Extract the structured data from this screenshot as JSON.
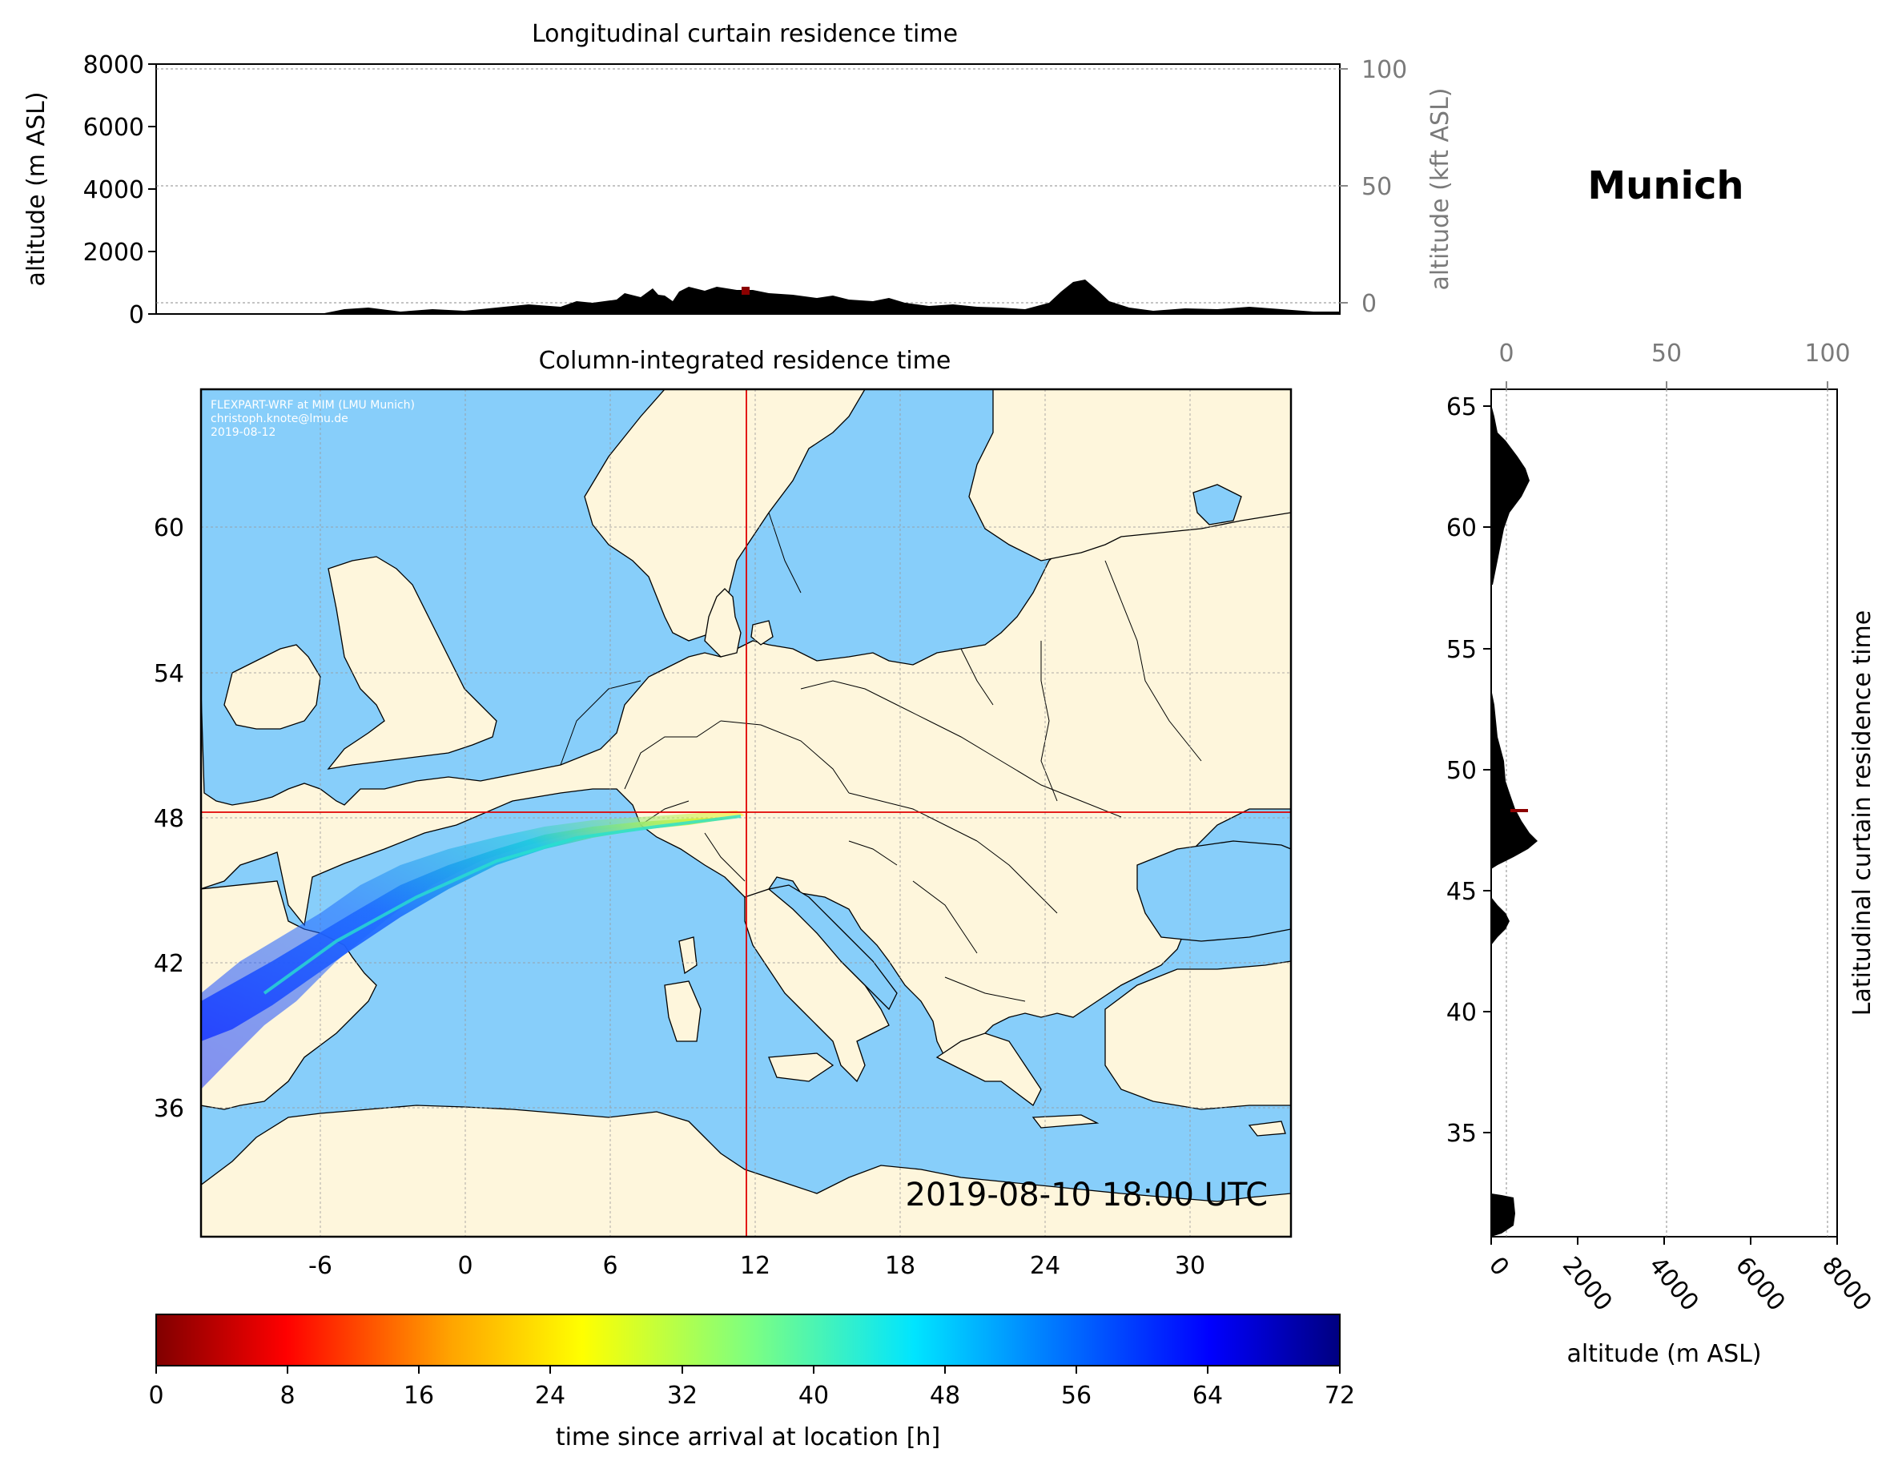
{
  "location_title": "Munich",
  "top_panel": {
    "title": "Longitudinal curtain residence time",
    "ylabel_left": "altitude (m ASL)",
    "ylabel_right": "altitude (kft ASL)",
    "left_ticks": [
      "0",
      "2000",
      "4000",
      "6000",
      "8000"
    ],
    "right_ticks": [
      "0",
      "50",
      "100"
    ]
  },
  "map_panel": {
    "title": "Column-integrated residence time",
    "credit": [
      "FLEXPART-WRF at MIM (LMU Munich)",
      "christoph.knote@lmu.de",
      "2019-08-12"
    ],
    "timestamp": "2019-08-10 18:00 UTC",
    "lat_ticks": [
      "36",
      "42",
      "48",
      "54",
      "60"
    ],
    "lon_ticks": [
      "-6",
      "0",
      "6",
      "12",
      "18",
      "24",
      "30"
    ],
    "crosshair": {
      "lon": 11.6,
      "lat": 48.1
    },
    "colors": {
      "land": "#fef6dc",
      "sea": "#87cefa",
      "crosshair": "#e00000",
      "border": "#000000"
    }
  },
  "right_panel": {
    "title": "Latitudinal curtain residence time",
    "xlabel": "altitude (m ASL)",
    "bottom_ticks": [
      "0",
      "2000",
      "4000",
      "6000",
      "8000"
    ],
    "top_ticks": [
      "0",
      "50",
      "100"
    ],
    "lat_ticks": [
      "35",
      "40",
      "45",
      "50",
      "55",
      "60",
      "65"
    ]
  },
  "colorbar": {
    "label": "time since arrival at location [h]",
    "ticks": [
      "0",
      "8",
      "16",
      "24",
      "32",
      "40",
      "48",
      "56",
      "64",
      "72"
    ],
    "colormap": "jet_r",
    "range": [
      0,
      72
    ]
  }
}
